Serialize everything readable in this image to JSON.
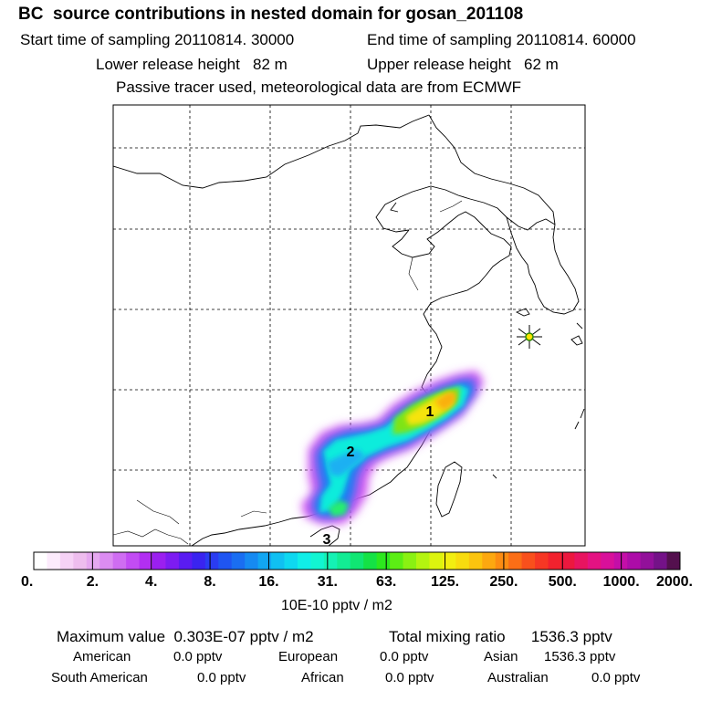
{
  "header": {
    "title": "BC  source contributions in nested domain for gosan_201108",
    "start_time": "Start time of sampling 20110814. 30000",
    "end_time": "End time of sampling 20110814. 60000",
    "lower_release": "Lower release height   82 m",
    "upper_release": "Upper release height   62 m",
    "note": "Passive tracer used, meteorological data are from ECMWF"
  },
  "chart_data": {
    "type": "heatmap",
    "title": "BC  source contributions in nested domain for gosan_201108",
    "map": {
      "grid": true,
      "receptor": "gosan",
      "plume_labels": [
        "1",
        "2",
        "3"
      ]
    },
    "colorbar": {
      "tick_labels": [
        "0.",
        "2.",
        "4.",
        "8.",
        "16.",
        "31.",
        "63.",
        "125.",
        "250.",
        "500.",
        "1000.",
        "2000."
      ],
      "unit": "10E-10 pptv / m2",
      "colors": [
        "#ffffff",
        "#fcebfc",
        "#f6d2f6",
        "#eebdee",
        "#e6a8f0",
        "#dc8cf2",
        "#cf6df2",
        "#c24cf4",
        "#b22ff2",
        "#9b1ff0",
        "#7d1cf2",
        "#5a1cf2",
        "#3a24f0",
        "#2a3cf2",
        "#1f55f2",
        "#1a6ef2",
        "#168af2",
        "#12a6f2",
        "#10c0f2",
        "#0ed8f0",
        "#10eee8",
        "#12f5d2",
        "#14f2b4",
        "#12ec94",
        "#10e673",
        "#14e245",
        "#2ce81e",
        "#5cee14",
        "#8af112",
        "#b4f410",
        "#dcf40e",
        "#f2ee10",
        "#f8dc0e",
        "#fbc40e",
        "#fca810",
        "#fc8c12",
        "#fb6e16",
        "#f9501c",
        "#f63724",
        "#f2222e",
        "#ec183e",
        "#e81460",
        "#e41282",
        "#d8109a",
        "#c40ea8",
        "#ad0ca8",
        "#92109a",
        "#741288",
        "#54104e"
      ]
    }
  },
  "footer": {
    "max_value": "Maximum value  0.303E-07 pptv / m2",
    "total_mixing": "Total mixing ratio      1536.3 pptv",
    "american_label": "American",
    "american_value": "0.0 pptv",
    "european_label": "European",
    "european_value": "0.0 pptv",
    "asian_label": "Asian",
    "asian_value": "1536.3 pptv",
    "south_american_label": "South American",
    "south_american_value": "0.0 pptv",
    "african_label": "African",
    "african_value": "0.0 pptv",
    "australian_label": "Australian",
    "australian_value": "0.0 pptv"
  }
}
